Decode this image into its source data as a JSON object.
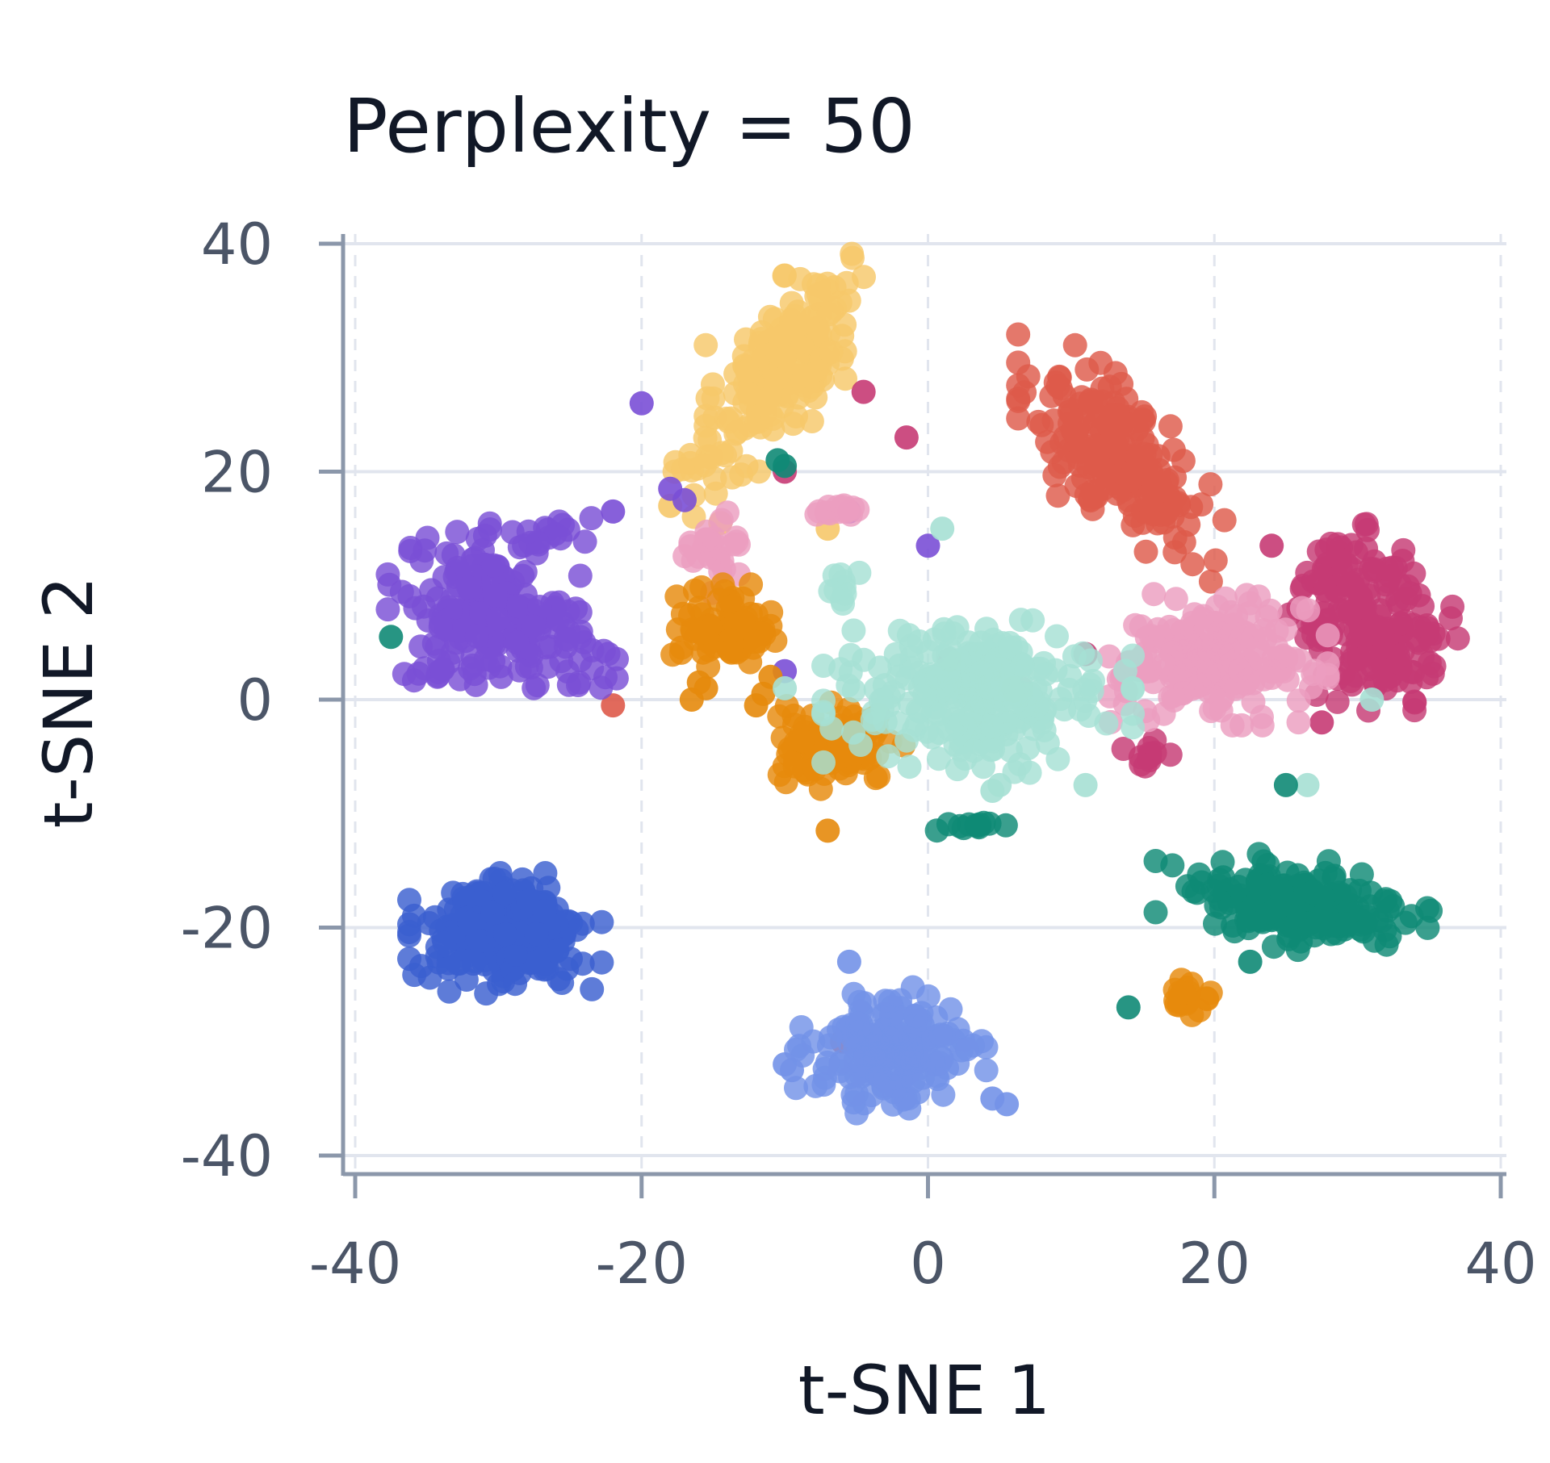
{
  "chart_data": {
    "type": "scatter",
    "title": "Perplexity = 50",
    "xlabel": "t-SNE 1",
    "ylabel": "t-SNE 2",
    "xlim": [
      -40,
      40
    ],
    "ylim": [
      -40,
      40
    ],
    "xticks": [
      -40,
      -20,
      0,
      20,
      40
    ],
    "yticks": [
      -40,
      -20,
      0,
      20,
      40
    ],
    "xtick_labels": [
      "-40",
      "-20",
      "0",
      "20",
      "40"
    ],
    "ytick_labels": [
      "-40",
      "-20",
      "0",
      "20",
      "40"
    ],
    "grid": true,
    "legend": "none",
    "series": [
      {
        "color": "#f6c86a",
        "clusters": [
          {
            "cx": -10,
            "cy": 30,
            "sx": 2.3,
            "sy": 3.6,
            "n": 190,
            "corr": 0.55
          },
          {
            "cx": -15,
            "cy": 21,
            "sx": 1.8,
            "sy": 2.2,
            "n": 25,
            "corr": 0.3
          }
        ],
        "outliers": [
          [
            -18,
            17
          ],
          [
            -7,
            15
          ],
          [
            -14.5,
            15.5
          ]
        ]
      },
      {
        "color": "#de5a4a",
        "clusters": [
          {
            "cx": 13.5,
            "cy": 21,
            "sx": 3.0,
            "sy": 4.0,
            "n": 210,
            "corr": -0.65
          }
        ],
        "outliers": [
          [
            -22,
            -0.5
          ],
          [
            -6,
            -30
          ]
        ]
      },
      {
        "color": "#7a4fd6",
        "clusters": [
          {
            "cx": -31,
            "cy": 8,
            "sx": 2.8,
            "sy": 2.8,
            "n": 170,
            "corr": 0
          },
          {
            "cx": -26,
            "cy": 5,
            "sx": 2.0,
            "sy": 2.0,
            "n": 45,
            "corr": 0
          },
          {
            "cx": -27,
            "cy": 14,
            "sx": 2.5,
            "sy": 0.8,
            "n": 20,
            "corr": 0
          },
          {
            "cx": -35,
            "cy": 2.5,
            "sx": 1.0,
            "sy": 0.6,
            "n": 10,
            "corr": 0
          }
        ],
        "outliers": [
          [
            -20,
            26
          ],
          [
            -22,
            16.5
          ],
          [
            -18,
            18.5
          ],
          [
            -17,
            17.5
          ],
          [
            -5.5,
            16.5
          ],
          [
            0,
            13.5
          ],
          [
            -10,
            2.5
          ]
        ]
      },
      {
        "color": "#c63b74",
        "clusters": [
          {
            "cx": 31,
            "cy": 7,
            "sx": 2.5,
            "sy": 3.6,
            "n": 200,
            "corr": -0.3
          },
          {
            "cx": 15.5,
            "cy": -5,
            "sx": 0.9,
            "sy": 0.6,
            "n": 12,
            "corr": 0
          }
        ],
        "outliers": [
          [
            -4.5,
            27
          ],
          [
            -1.5,
            23
          ],
          [
            -10,
            20
          ],
          [
            1.5,
            3.5
          ],
          [
            11,
            4
          ],
          [
            24,
            13.5
          ],
          [
            27.5,
            -2
          ]
        ]
      },
      {
        "color": "#ec9ec0",
        "clusters": [
          {
            "cx": 20,
            "cy": 3.5,
            "sx": 3.3,
            "sy": 2.4,
            "n": 210,
            "corr": 0
          },
          {
            "cx": -15,
            "cy": 13,
            "sx": 0.9,
            "sy": 1.6,
            "n": 30,
            "corr": 0
          },
          {
            "cx": -6.5,
            "cy": 16.5,
            "sx": 1.2,
            "sy": 0.4,
            "n": 14,
            "corr": 0
          }
        ],
        "outliers": [
          [
            6,
            1
          ],
          [
            6.5,
            1
          ],
          [
            6,
            0.8
          ]
        ]
      },
      {
        "color": "#e68a0c",
        "clusters": [
          {
            "cx": -14,
            "cy": 6.5,
            "sx": 1.6,
            "sy": 1.5,
            "n": 85,
            "corr": 0
          },
          {
            "cx": -6.5,
            "cy": -4,
            "sx": 2.0,
            "sy": 1.6,
            "n": 110,
            "corr": 0
          },
          {
            "cx": 18,
            "cy": -26.5,
            "sx": 0.9,
            "sy": 0.8,
            "n": 20,
            "corr": 0
          }
        ],
        "outliers": [
          [
            -16,
            1.5
          ],
          [
            -16.5,
            0
          ],
          [
            -15.5,
            1
          ],
          [
            -11.5,
            0.5
          ],
          [
            -11,
            2
          ],
          [
            -7,
            -11.5
          ],
          [
            -12,
            -0.5
          ]
        ]
      },
      {
        "color": "#a6e0d4",
        "clusters": [
          {
            "cx": 3.5,
            "cy": 0.5,
            "sx": 4.5,
            "sy": 2.8,
            "n": 260,
            "corr": -0.1
          },
          {
            "cx": -6,
            "cy": 10,
            "sx": 0.5,
            "sy": 0.8,
            "n": 10,
            "corr": 0
          }
        ],
        "outliers": [
          [
            1,
            15
          ],
          [
            5,
            -7.5
          ],
          [
            4.5,
            -8
          ],
          [
            11,
            -7.5
          ],
          [
            26.5,
            -7.5
          ],
          [
            31,
            0
          ],
          [
            -10,
            1
          ]
        ]
      },
      {
        "color": "#0f8a75",
        "clusters": [
          {
            "cx": 25.5,
            "cy": -18,
            "sx": 4.0,
            "sy": 1.8,
            "n": 200,
            "corr": -0.25
          },
          {
            "cx": 3,
            "cy": -11,
            "sx": 1.2,
            "sy": 0.3,
            "n": 12,
            "corr": 0
          }
        ],
        "outliers": [
          [
            -37.5,
            5.5
          ],
          [
            -10.5,
            21
          ],
          [
            -10,
            20.5
          ],
          [
            14,
            -27
          ],
          [
            25,
            -7.5
          ],
          [
            22.5,
            -23
          ]
        ]
      },
      {
        "color": "#3a5fcf",
        "clusters": [
          {
            "cx": -29.5,
            "cy": -20.5,
            "sx": 2.8,
            "sy": 2.2,
            "n": 280,
            "corr": 0
          }
        ],
        "outliers": []
      },
      {
        "color": "#7392e8",
        "clusters": [
          {
            "cx": -2.5,
            "cy": -31,
            "sx": 2.8,
            "sy": 2.4,
            "n": 170,
            "corr": 0
          }
        ],
        "outliers": [
          [
            -10,
            -32
          ],
          [
            -9.5,
            -32.5
          ],
          [
            4.5,
            -35
          ],
          [
            5.5,
            -35.5
          ],
          [
            -5.5,
            -23
          ]
        ]
      }
    ]
  }
}
